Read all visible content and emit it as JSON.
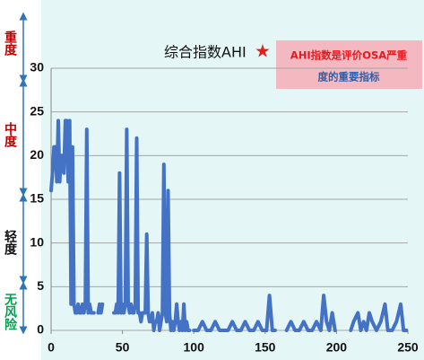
{
  "chart_data": {
    "type": "line",
    "title": "综合指数AHI",
    "title_mark": "★",
    "note_lines": [
      "AHI指数是评价OSA严重",
      "度的重要指标"
    ],
    "severity_labels": [
      "重度",
      "中度",
      "轻度",
      "无风险"
    ],
    "x": [
      0,
      1,
      2,
      3,
      4,
      5,
      6,
      7,
      8,
      9,
      10,
      11,
      12,
      13,
      14,
      15,
      16,
      17,
      18,
      19,
      20,
      21,
      22,
      23,
      24,
      25,
      26,
      27,
      28,
      29,
      30,
      31,
      33,
      34,
      35,
      36,
      40,
      44,
      45,
      46,
      47,
      48,
      49,
      50,
      51,
      52,
      53,
      54,
      55,
      56,
      57,
      58,
      59,
      60,
      61,
      62,
      63,
      64,
      65,
      66,
      67,
      68,
      69,
      70,
      71,
      72,
      73,
      74,
      75,
      76,
      77,
      78,
      79,
      80,
      81,
      82,
      83,
      84,
      85,
      86,
      87,
      88,
      89,
      90,
      91,
      92,
      93,
      94,
      95,
      96,
      97,
      98,
      100,
      103,
      106,
      109,
      112,
      115,
      118,
      121,
      124,
      127,
      130,
      133,
      136,
      139,
      142,
      145,
      148,
      151,
      153,
      155,
      157,
      160,
      165,
      168,
      171,
      174,
      177,
      180,
      183,
      186,
      189,
      191,
      193,
      195,
      197,
      199,
      205,
      210,
      212,
      215,
      217,
      219,
      221,
      223,
      225,
      228,
      231,
      234,
      236,
      239,
      242,
      245,
      247,
      249
    ],
    "series": [
      {
        "color": "#4472c4",
        "values": [
          16,
          18,
          21,
          21,
          17,
          24,
          17,
          20,
          20,
          18,
          24,
          24,
          17,
          24,
          3,
          21,
          3,
          2,
          2,
          3,
          2,
          2,
          3,
          2,
          3,
          23,
          2,
          3,
          2,
          2,
          2,
          null,
          2,
          3,
          2,
          3,
          null,
          2,
          2,
          3,
          2,
          18,
          2,
          3,
          2,
          3,
          23,
          3,
          2,
          3,
          2,
          2,
          3,
          22,
          2,
          2,
          1,
          2,
          2,
          2,
          11,
          2,
          1,
          1,
          2,
          0,
          1,
          1,
          2,
          0,
          1,
          2,
          19,
          2,
          1,
          16,
          2,
          0,
          1,
          0,
          1,
          3,
          1,
          0,
          1,
          0,
          3,
          0,
          1,
          0,
          0,
          null,
          0,
          0,
          1,
          0,
          0,
          1,
          0,
          0,
          0,
          1,
          0,
          0,
          1,
          0,
          0,
          1,
          0,
          0,
          4,
          0,
          0,
          null,
          0,
          1,
          0,
          0,
          1,
          0,
          0,
          1,
          0,
          4,
          1,
          0,
          2,
          0,
          null,
          0,
          1,
          2,
          0,
          1,
          0,
          2,
          1,
          0,
          1,
          3,
          0,
          0,
          1,
          3,
          0,
          0
        ]
      }
    ],
    "xlim": [
      0,
      250
    ],
    "xticks": [
      0,
      50,
      100,
      150,
      200,
      250
    ],
    "ylim": [
      0,
      30
    ],
    "yticks": [
      0,
      5,
      10,
      15,
      20,
      25,
      30
    ],
    "grid": true
  }
}
